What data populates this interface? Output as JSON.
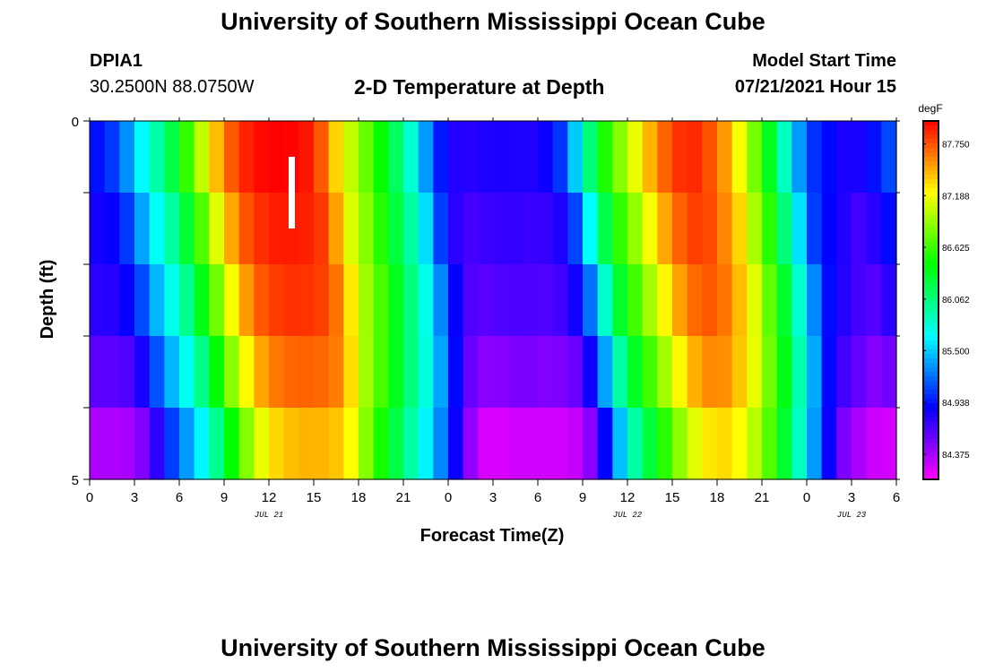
{
  "header": {
    "title": "University of Southern Mississippi Ocean Cube",
    "station_id": "DPIA1",
    "coordinates": "30.2500N  88.0750W",
    "plot_title": "2-D Temperature at Depth",
    "model_start_label": "Model Start Time",
    "model_start_value": "07/21/2021 Hour 15"
  },
  "footer": {
    "title": "University of Southern Mississippi Ocean Cube"
  },
  "chart_data": {
    "type": "heatmap",
    "title": "2-D Temperature at Depth",
    "xlabel": "Forecast Time(Z)",
    "ylabel": "Depth (ft)",
    "x_ticks": [
      "0",
      "3",
      "6",
      "9",
      "12",
      "15",
      "18",
      "21",
      "0",
      "3",
      "6",
      "9",
      "12",
      "15",
      "18",
      "21",
      "0",
      "3",
      "6"
    ],
    "date_labels": [
      {
        "text": "JUL 21",
        "hour_index": 12
      },
      {
        "text": "JUL 22",
        "hour_index": 36
      },
      {
        "text": "JUL 23",
        "hour_index": 51
      }
    ],
    "y_tick_labels": [
      "0",
      "5"
    ],
    "ylim": [
      0,
      5
    ],
    "depth_rows": 5,
    "hours": 54,
    "colorbar": {
      "unit": "degF",
      "min": 84.1,
      "max": 88.0,
      "ticks": [
        "87.750",
        "87.188",
        "86.625",
        "86.062",
        "85.500",
        "84.938",
        "84.375"
      ]
    },
    "marker": {
      "type": "current-time",
      "hour": 13.5,
      "depth_from": 0.5,
      "depth_to": 1.5
    },
    "temperature_profile": {
      "surface_hours": [
        0,
        1,
        2,
        3,
        4,
        5,
        6,
        7,
        8,
        9,
        10,
        11,
        12,
        13,
        14,
        15,
        16,
        17,
        18,
        19,
        20,
        21,
        22,
        23,
        24,
        25,
        26,
        27,
        28,
        29,
        30,
        31,
        32,
        33,
        34,
        35,
        36,
        37,
        38,
        39,
        40,
        41,
        42,
        43,
        44,
        45,
        46,
        47,
        48,
        49,
        50,
        51,
        52,
        53,
        54
      ],
      "surface_values": [
        84.9,
        84.95,
        85.15,
        85.5,
        85.8,
        86.05,
        86.4,
        86.8,
        87.25,
        87.6,
        87.85,
        87.95,
        88.0,
        88.0,
        87.98,
        87.9,
        87.55,
        87.15,
        86.9,
        86.6,
        86.3,
        86.0,
        85.6,
        85.1,
        84.8,
        84.75,
        84.78,
        84.8,
        84.8,
        84.78,
        84.8,
        84.88,
        85.2,
        85.8,
        86.35,
        86.7,
        87.0,
        87.3,
        87.6,
        87.8,
        87.9,
        87.85,
        87.65,
        87.4,
        87.0,
        86.6,
        86.1,
        85.6,
        85.1,
        84.95,
        84.85,
        84.75,
        84.85,
        85.0,
        85.2
      ],
      "row_lags_hours": [
        0,
        0.6,
        1.2,
        1.7,
        2.1
      ],
      "row_offsets_degF": [
        0,
        -0.08,
        -0.15,
        -0.3,
        -0.55
      ]
    }
  }
}
